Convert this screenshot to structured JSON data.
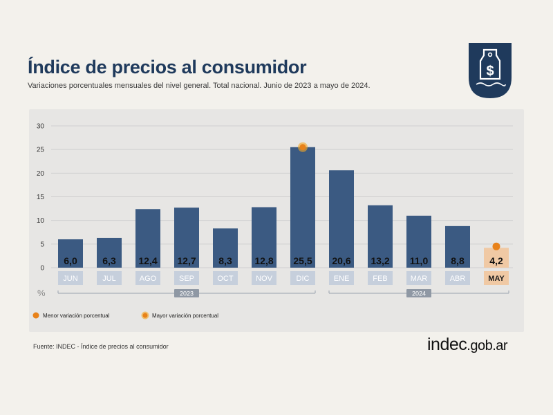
{
  "header": {
    "title": "Índice de precios al consumidor",
    "subtitle": "Variaciones porcentuales mensuales del nivel general. Total nacional. Junio de 2023 a mayo de 2024."
  },
  "footer": {
    "source": "Fuente: INDEC - Índice de precios al consumidor",
    "brand_main": "indec",
    "brand_suffix": ".gob.ar"
  },
  "logo": {
    "icon": "price-tag-dollar-icon",
    "color": "#1f3a5c"
  },
  "colors": {
    "bar": "#3b5a82",
    "highlight_bar": "#f0c9a4",
    "label_bg": "#c6cfdc",
    "label_text": "#ffffff",
    "min_marker": "#e8821a",
    "max_marker": "#f5a623",
    "title": "#1f3a5c"
  },
  "chart_data": {
    "type": "bar",
    "categories": [
      "JUN",
      "JUL",
      "AGO",
      "SEP",
      "OCT",
      "NOV",
      "DIC",
      "ENE",
      "FEB",
      "MAR",
      "ABR",
      "MAY"
    ],
    "value_labels": [
      "6,0",
      "6,3",
      "12,4",
      "12,7",
      "8,3",
      "12,8",
      "25,5",
      "20,6",
      "13,2",
      "11,0",
      "8,8",
      "4,2"
    ],
    "values": [
      6.0,
      6.3,
      12.4,
      12.7,
      8.3,
      12.8,
      25.5,
      20.6,
      13.2,
      11.0,
      8.8,
      4.2
    ],
    "y_ticks": [
      "30",
      "25",
      "20",
      "15",
      "10",
      "5",
      "0"
    ],
    "ylim": [
      0,
      30
    ],
    "ylabel": "%",
    "grid": true,
    "year_groups": [
      {
        "label": "2023",
        "from": 0,
        "to": 6
      },
      {
        "label": "2024",
        "from": 7,
        "to": 11
      }
    ],
    "highlight_index": 11,
    "min_index": 11,
    "max_index": 6,
    "legend": [
      {
        "label": "Menor variación porcentual",
        "marker": "min"
      },
      {
        "label": "Mayor variación porcentual",
        "marker": "max"
      }
    ],
    "legend_position": "bottom-left"
  }
}
